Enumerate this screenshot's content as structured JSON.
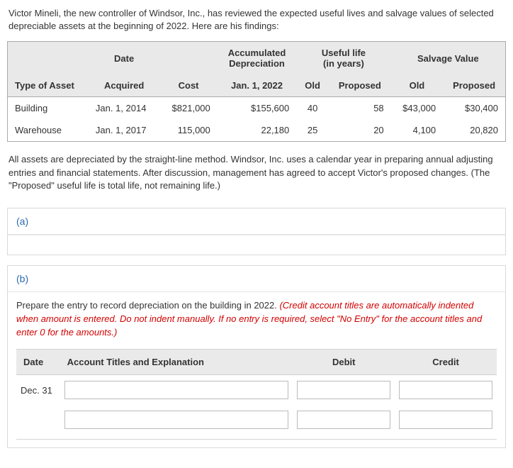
{
  "intro": "Victor Mineli, the new controller of Windsor, Inc., has reviewed the expected useful lives and salvage values of selected depreciable assets at the beginning of 2022. Here are his findings:",
  "asset_table": {
    "group_headers": {
      "blank1": "",
      "date": "Date",
      "blank2": "",
      "accum_dep": "Accumulated Depreciation",
      "useful_life": "Useful life (in years)",
      "salvage": "Salvage Value"
    },
    "col_headers": {
      "type": "Type of Asset",
      "acquired": "Acquired",
      "cost": "Cost",
      "jan1": "Jan. 1, 2022",
      "old_life": "Old",
      "prop_life": "Proposed",
      "old_sv": "Old",
      "prop_sv": "Proposed"
    },
    "rows": [
      {
        "type": "Building",
        "acquired": "Jan. 1, 2014",
        "cost": "$821,000",
        "accum": "$155,600",
        "old_life": "40",
        "prop_life": "58",
        "old_sv": "$43,000",
        "prop_sv": "$30,400"
      },
      {
        "type": "Warehouse",
        "acquired": "Jan. 1, 2017",
        "cost": "115,000",
        "accum": "22,180",
        "old_life": "25",
        "prop_life": "20",
        "old_sv": "4,100",
        "prop_sv": "20,820"
      }
    ]
  },
  "note": "All assets are depreciated by the straight-line method. Windsor, Inc. uses a calendar year in preparing annual adjusting entries and financial statements. After discussion, management has agreed to accept Victor's proposed changes. (The \"Proposed\" useful life is total life, not remaining life.)",
  "section_a_label": "(a)",
  "section_b": {
    "label": "(b)",
    "instr_black": "Prepare the entry to record depreciation on the building in 2022. ",
    "instr_red": "(Credit account titles are automatically indented when amount is entered. Do not indent manually. If no entry is required, select \"No Entry\" for the account titles and enter 0 for the amounts.)",
    "jr_headers": {
      "date": "Date",
      "acct": "Account Titles and Explanation",
      "debit": "Debit",
      "credit": "Credit"
    },
    "jr_date": "Dec. 31"
  }
}
